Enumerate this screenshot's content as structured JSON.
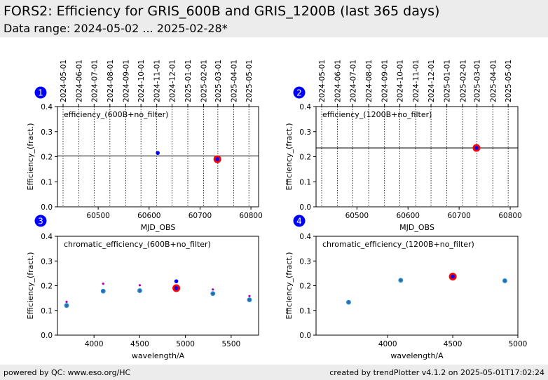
{
  "header": {
    "title": "FORS2: Efficiency for GRIS_600B and GRIS_1200B (last 365 days)",
    "subtitle": "Data range: 2024-05-02 ... 2025-02-28*"
  },
  "footer": {
    "left": "powered by QC: www.eso.org/HC",
    "right": "created by trendPlotter v4.1.2 on 2025-05-01T17:02:24"
  },
  "colors": {
    "point": "#0000ff",
    "highlight": "#ff0000",
    "chromatic_outer": "#1e90c8",
    "chromatic_secondary": "#b000b0",
    "badge": "#0000ff"
  },
  "chart_data": [
    {
      "id": "1",
      "type": "scatter",
      "annotation": "efficiency_(600B+no_filter)",
      "xlabel": "MJD_OBS",
      "ylabel": "Efficiency_(fract.)",
      "xlim": [
        60420,
        60815
      ],
      "ylim": [
        0,
        0.4
      ],
      "xticks": [
        60500,
        60600,
        60700,
        60800
      ],
      "yticks": [
        "0.0",
        "0.1",
        "0.2",
        "0.3",
        "0.4"
      ],
      "date_ticks": [
        {
          "label": "2024-05-01",
          "mjd": 60431
        },
        {
          "label": "2024-06-01",
          "mjd": 60462
        },
        {
          "label": "2024-07-01",
          "mjd": 60492
        },
        {
          "label": "2024-08-01",
          "mjd": 60523
        },
        {
          "label": "2024-09-01",
          "mjd": 60554
        },
        {
          "label": "2024-10-01",
          "mjd": 60584
        },
        {
          "label": "2024-11-01",
          "mjd": 60615
        },
        {
          "label": "2024-12-01",
          "mjd": 60645
        },
        {
          "label": "2025-01-01",
          "mjd": 60676
        },
        {
          "label": "2025-02-01",
          "mjd": 60707
        },
        {
          "label": "2025-03-01",
          "mjd": 60735
        },
        {
          "label": "2025-04-01",
          "mjd": 60766
        },
        {
          "label": "2025-05-01",
          "mjd": 60796
        }
      ],
      "reference_line": 0.203,
      "points": [
        {
          "x": 60617,
          "y": 0.215
        }
      ],
      "highlight": {
        "x": 60734,
        "y": 0.19
      }
    },
    {
      "id": "2",
      "type": "scatter",
      "annotation": "efficiency_(1200B+no_filter)",
      "xlabel": "MJD_OBS",
      "ylabel": "Efficiency_(fract.)",
      "xlim": [
        60420,
        60815
      ],
      "ylim": [
        0,
        0.4
      ],
      "xticks": [
        60500,
        60600,
        60700,
        60800
      ],
      "yticks": [
        "0.0",
        "0.1",
        "0.2",
        "0.3",
        "0.4"
      ],
      "date_ticks": [
        {
          "label": "2024-05-01",
          "mjd": 60431
        },
        {
          "label": "2024-06-01",
          "mjd": 60462
        },
        {
          "label": "2024-07-01",
          "mjd": 60492
        },
        {
          "label": "2024-08-01",
          "mjd": 60523
        },
        {
          "label": "2024-09-01",
          "mjd": 60554
        },
        {
          "label": "2024-10-01",
          "mjd": 60584
        },
        {
          "label": "2024-11-01",
          "mjd": 60615
        },
        {
          "label": "2024-12-01",
          "mjd": 60645
        },
        {
          "label": "2025-01-01",
          "mjd": 60676
        },
        {
          "label": "2025-02-01",
          "mjd": 60707
        },
        {
          "label": "2025-03-01",
          "mjd": 60735
        },
        {
          "label": "2025-04-01",
          "mjd": 60766
        },
        {
          "label": "2025-05-01",
          "mjd": 60796
        }
      ],
      "reference_line": 0.235,
      "points": [],
      "highlight": {
        "x": 60734,
        "y": 0.235
      }
    },
    {
      "id": "3",
      "type": "scatter",
      "annotation": "chromatic_efficiency_(600B+no_filter)",
      "xlabel": "wavelength/A",
      "ylabel": "Efficiency_(fract.)",
      "xlim": [
        3600,
        5800
      ],
      "ylim": [
        0,
        0.4
      ],
      "xticks": [
        4000,
        4500,
        5000,
        5500
      ],
      "yticks": [
        "0.0",
        "0.1",
        "0.2",
        "0.3",
        "0.4"
      ],
      "series": [
        {
          "name": "",
          "style": "outer",
          "x": [
            3700,
            4100,
            4500,
            5300,
            5700
          ],
          "y": [
            0.12,
            0.178,
            0.18,
            0.168,
            0.143
          ]
        },
        {
          "name": "",
          "style": "small",
          "x": [
            3700,
            4100,
            4500,
            5300,
            5700
          ],
          "y": [
            0.135,
            0.208,
            0.202,
            0.185,
            0.158
          ]
        },
        {
          "name": "",
          "style": "blue",
          "x": [
            4900
          ],
          "y": [
            0.218
          ]
        }
      ],
      "highlight": {
        "x": 4900,
        "y": 0.19
      }
    },
    {
      "id": "4",
      "type": "scatter",
      "annotation": "chromatic_efficiency_(1200B+no_filter)",
      "xlabel": "wavelength/A",
      "ylabel": "Efficiency_(fract.)",
      "xlim": [
        3450,
        5000
      ],
      "ylim": [
        0,
        0.4
      ],
      "xticks": [
        4000,
        4500,
        5000
      ],
      "yticks": [
        "0.0",
        "0.1",
        "0.2",
        "0.3",
        "0.4"
      ],
      "series": [
        {
          "name": "",
          "style": "outer",
          "x": [
            3700,
            4100,
            4900
          ],
          "y": [
            0.133,
            0.222,
            0.22
          ]
        }
      ],
      "highlight": {
        "x": 4500,
        "y": 0.237
      }
    }
  ]
}
